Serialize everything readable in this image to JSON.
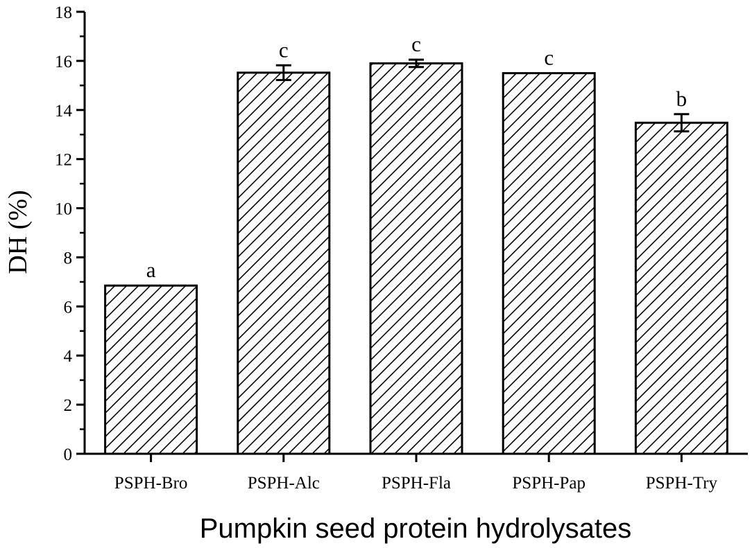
{
  "chart_data": {
    "type": "bar",
    "title": "",
    "xlabel": "Pumpkin seed protein hydrolysates",
    "ylabel": "DH (%)",
    "ylim": [
      0,
      18
    ],
    "yticks": [
      0,
      2,
      4,
      6,
      8,
      10,
      12,
      14,
      16,
      18
    ],
    "categories": [
      "PSPH-Bro",
      "PSPH-Alc",
      "PSPH-Fla",
      "PSPH-Pap",
      "PSPH-Try"
    ],
    "values": [
      6.85,
      15.52,
      15.9,
      15.5,
      13.48
    ],
    "errors": [
      0.02,
      0.3,
      0.15,
      0.02,
      0.35
    ],
    "significance_letters": [
      "a",
      "c",
      "c",
      "c",
      "b"
    ],
    "bar_fill": "hatched",
    "grid": false,
    "legend": "none",
    "colors": {
      "bar_edge": "#000000",
      "hatch": "#000000",
      "background": "#ffffff"
    }
  }
}
